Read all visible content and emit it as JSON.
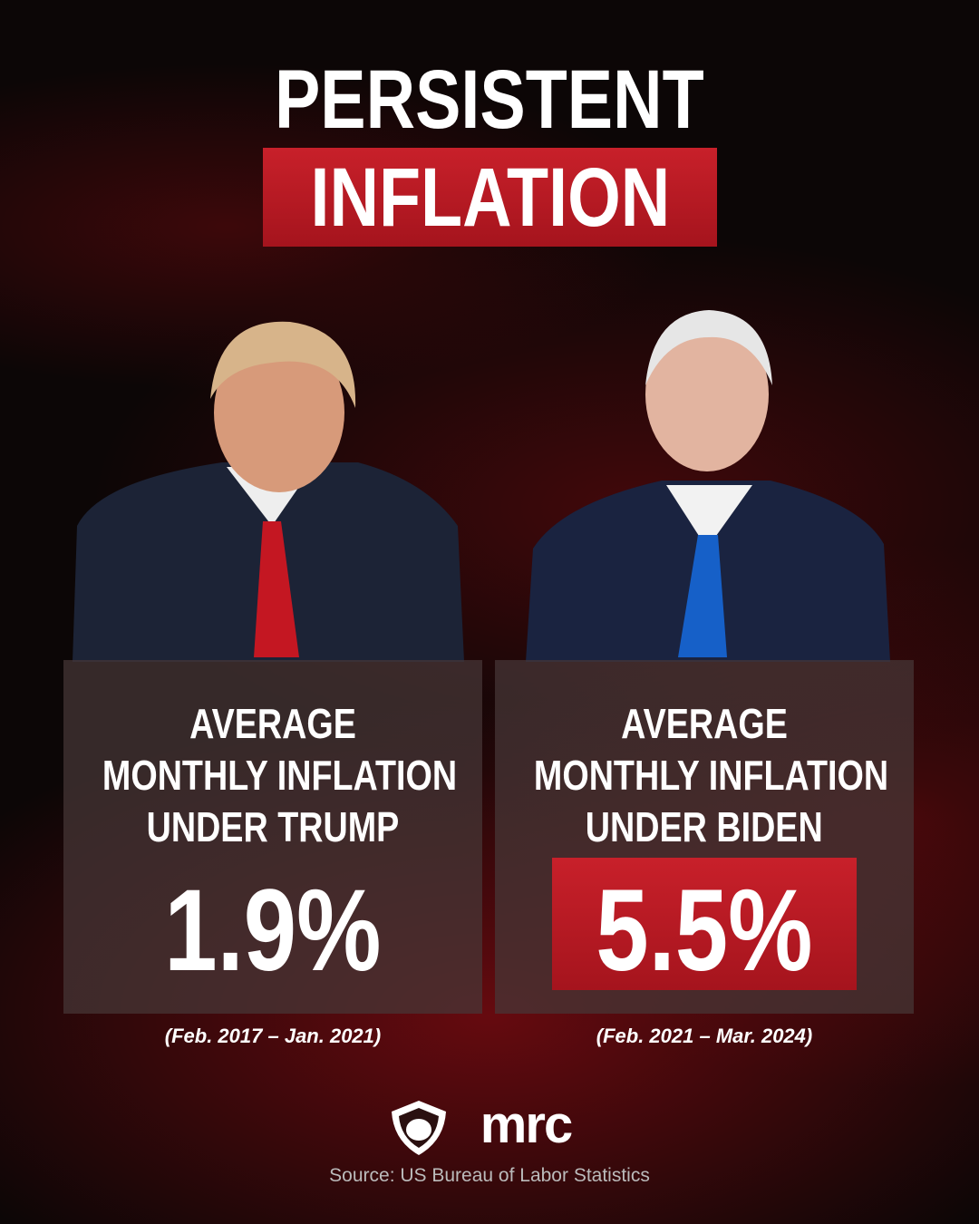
{
  "header": {
    "line1": "PERSISTENT",
    "line2": "INFLATION"
  },
  "panels": [
    {
      "label_lines": [
        "AVERAGE",
        "MONTHLY INFLATION",
        "UNDER TRUMP"
      ],
      "value": "1.9%",
      "period": "(Feb. 2017 – Jan. 2021)"
    },
    {
      "label_lines": [
        "AVERAGE",
        "MONTHLY INFLATION",
        "UNDER BIDEN"
      ],
      "value": "5.5%",
      "period": "(Feb. 2021 – Mar. 2024)"
    }
  ],
  "logo": "mrc",
  "source": "Source: US Bureau of Labor Statistics"
}
